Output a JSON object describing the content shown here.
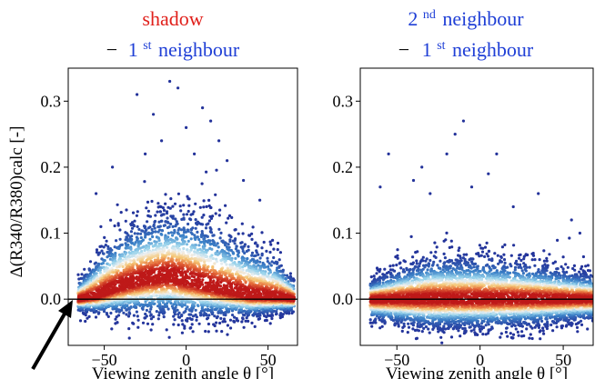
{
  "colors": {
    "title_red": "#e0201b",
    "title_blue": "#1f3fd6",
    "point": "#23329a",
    "density_high": "#c8231c",
    "zero_line": "#000000"
  },
  "chart_data": [
    {
      "type": "scatter",
      "subtype": "density-colored scatter",
      "title_parts": {
        "line1": "shadow",
        "line2_minus": "−",
        "line2_sup_base": "1",
        "line2_sup": "st",
        "line2_rest": "neighbour"
      },
      "xlabel": "Viewing zenith angle θ [°]",
      "ylabel": "Δ(R340/R380)calc [-]",
      "xlim": [
        -72,
        68
      ],
      "ylim": [
        -0.07,
        0.35
      ],
      "xticks": [
        -50,
        0,
        50
      ],
      "xtick_labels": [
        "−50",
        "0",
        "50"
      ],
      "yticks": [
        0.0,
        0.1,
        0.2,
        0.3
      ],
      "ytick_labels": [
        "0.0",
        "0.1",
        "0.2",
        "0.3"
      ],
      "hline_y": 0.0,
      "grid": false,
      "annotation": "arrow pointing at lower-left edge of the point cloud",
      "cloud": {
        "x_range": [
          -66,
          66
        ],
        "center_trend": [
          [
            -66,
            0.0
          ],
          [
            -55,
            0.005
          ],
          [
            -40,
            0.02
          ],
          [
            -25,
            0.03
          ],
          [
            -10,
            0.035
          ],
          [
            5,
            0.025
          ],
          [
            20,
            0.015
          ],
          [
            40,
            0.005
          ],
          [
            60,
            0.002
          ],
          [
            66,
            0.0
          ]
        ],
        "upper_envelope": [
          [
            -66,
            0.03
          ],
          [
            -60,
            0.05
          ],
          [
            -50,
            0.09
          ],
          [
            -35,
            0.12
          ],
          [
            -15,
            0.14
          ],
          [
            0,
            0.14
          ],
          [
            20,
            0.12
          ],
          [
            40,
            0.09
          ],
          [
            55,
            0.07
          ],
          [
            66,
            0.03
          ]
        ],
        "lower_envelope": [
          [
            -66,
            -0.02
          ],
          [
            -40,
            -0.03
          ],
          [
            0,
            -0.035
          ],
          [
            40,
            -0.03
          ],
          [
            66,
            -0.02
          ]
        ],
        "outliers": [
          [
            -30,
            0.31
          ],
          [
            -10,
            0.33
          ],
          [
            -5,
            0.32
          ],
          [
            -20,
            0.28
          ],
          [
            10,
            0.29
          ],
          [
            15,
            0.27
          ],
          [
            -45,
            0.2
          ],
          [
            25,
            0.21
          ],
          [
            -15,
            0.24
          ],
          [
            5,
            0.22
          ],
          [
            35,
            0.18
          ],
          [
            -55,
            0.16
          ],
          [
            45,
            0.15
          ],
          [
            0,
            0.26
          ],
          [
            -25,
            0.22
          ],
          [
            20,
            0.24
          ]
        ]
      }
    },
    {
      "type": "scatter",
      "subtype": "density-colored scatter",
      "title_parts": {
        "line1_sup_base": "2",
        "line1_sup": "nd",
        "line1_rest": "neighbour",
        "line2_minus": "−",
        "line2_sup_base": "1",
        "line2_sup": "st",
        "line2_rest": "neighbour"
      },
      "xlabel": "Viewing zenith angle θ [°]",
      "xlim": [
        -72,
        68
      ],
      "ylim": [
        -0.07,
        0.35
      ],
      "xticks": [
        -50,
        0,
        50
      ],
      "xtick_labels": [
        "−50",
        "0",
        "50"
      ],
      "yticks": [
        0.0,
        0.1,
        0.2,
        0.3
      ],
      "ytick_labels": [
        "0.0",
        "0.1",
        "0.2",
        "0.3"
      ],
      "hline_y": 0.0,
      "grid": false,
      "cloud": {
        "x_range": [
          -66,
          68
        ],
        "center_trend": [
          [
            -66,
            0.0
          ],
          [
            -30,
            0.0
          ],
          [
            0,
            0.0
          ],
          [
            30,
            0.0
          ],
          [
            68,
            0.0
          ]
        ],
        "upper_envelope": [
          [
            -66,
            0.03
          ],
          [
            -50,
            0.05
          ],
          [
            -30,
            0.07
          ],
          [
            0,
            0.07
          ],
          [
            30,
            0.06
          ],
          [
            50,
            0.05
          ],
          [
            68,
            0.04
          ]
        ],
        "lower_envelope": [
          [
            -66,
            -0.035
          ],
          [
            -30,
            -0.05
          ],
          [
            0,
            -0.05
          ],
          [
            30,
            -0.045
          ],
          [
            68,
            -0.035
          ]
        ],
        "outliers": [
          [
            -10,
            0.27
          ],
          [
            -15,
            0.25
          ],
          [
            -35,
            0.2
          ],
          [
            -40,
            0.18
          ],
          [
            -30,
            0.16
          ],
          [
            -55,
            0.22
          ],
          [
            -60,
            0.17
          ],
          [
            -20,
            0.22
          ],
          [
            10,
            0.22
          ],
          [
            5,
            0.19
          ],
          [
            20,
            0.14
          ],
          [
            35,
            0.16
          ],
          [
            55,
            0.12
          ],
          [
            -5,
            0.17
          ],
          [
            60,
            0.1
          ]
        ]
      }
    }
  ]
}
